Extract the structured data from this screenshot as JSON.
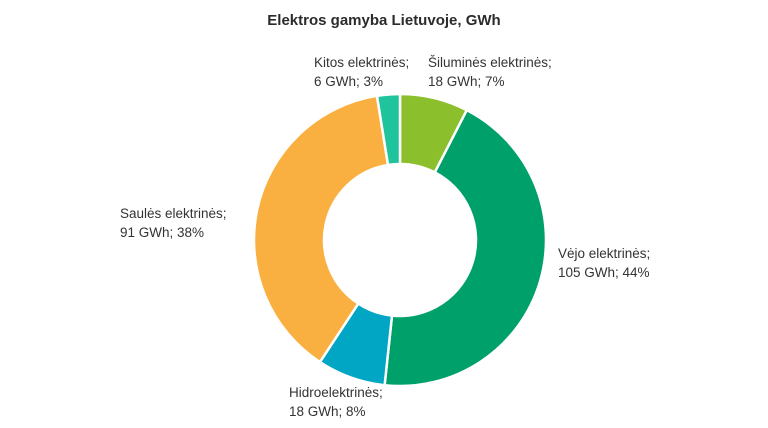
{
  "chart_data": {
    "type": "pie",
    "title": "Elektros gamyba Lietuvoje, GWh",
    "categories": [
      "Šiluminės elektrinės",
      "Vėjo elektrinės",
      "Hidroelektrinės",
      "Saulės elektrinės",
      "Kitos elektrinės"
    ],
    "values": [
      18,
      105,
      18,
      91,
      6
    ],
    "labels": [
      {
        "line1": "Šiluminės elektrinės;",
        "line2": "18 GWh; 7%"
      },
      {
        "line1": "Vėjo elektrinės;",
        "line2": "105 GWh; 44%"
      },
      {
        "line1": "Hidroelektrinės;",
        "line2": "18 GWh; 8%"
      },
      {
        "line1": "Saulės elektrinės;",
        "line2": "91 GWh; 38%"
      },
      {
        "line1": "Kitos elektrinės;",
        "line2": "6 GWh; 3%"
      }
    ],
    "colors": [
      "#8bbf2c",
      "#00a06b",
      "#00a6c4",
      "#f9b040",
      "#1fc49c"
    ],
    "donut": true
  }
}
